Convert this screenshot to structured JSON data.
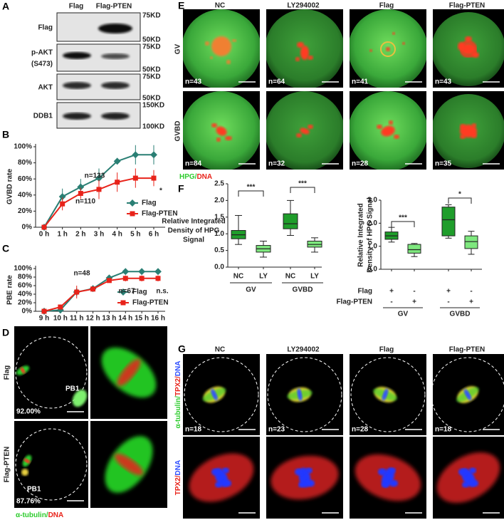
{
  "panel_a": {
    "label": "A",
    "columns": [
      "Flag",
      "Flag-PTEN"
    ],
    "rows": [
      {
        "label": [
          "Flag"
        ],
        "markers": [
          "75KD",
          "50KD"
        ]
      },
      {
        "label": [
          "p-AKT",
          "(S473)"
        ],
        "markers": [
          "75KD",
          "50KD"
        ]
      },
      {
        "label": [
          "AKT"
        ],
        "markers": [
          "75KD",
          "50KD"
        ]
      },
      {
        "label": [
          "DDB1"
        ],
        "markers": [
          "150KD",
          "100KD"
        ]
      }
    ]
  },
  "chart_data": [
    {
      "type": "line",
      "panel": "B",
      "ylabel": "GVBD rate",
      "categories": [
        "0 h",
        "1 h",
        "2 h",
        "3 h",
        "4 h",
        "5 h",
        "6 h"
      ],
      "series": [
        {
          "name": "Flag",
          "color": "#2a7f74",
          "marker": "diamond",
          "values": [
            0,
            38,
            50,
            61,
            82,
            90,
            90
          ],
          "errors": [
            0,
            10,
            10,
            12,
            4,
            12,
            12
          ]
        },
        {
          "name": "Flag-PTEN",
          "color": "#e8231a",
          "marker": "square",
          "values": [
            0,
            29,
            42,
            47,
            56,
            61,
            61
          ],
          "errors": [
            0,
            8,
            7,
            12,
            12,
            12,
            10
          ]
        }
      ],
      "ylim": [
        0,
        100
      ],
      "yticks": [
        {
          "value": 0,
          "label": "0%"
        },
        {
          "value": 20,
          "label": "20%"
        },
        {
          "value": 40,
          "label": "40%"
        },
        {
          "value": 60,
          "label": "60%"
        },
        {
          "value": 80,
          "label": "80%"
        },
        {
          "value": 100,
          "label": "100%"
        }
      ],
      "legend": "lower right",
      "annotations": [
        "n=133",
        "n=110",
        "*"
      ]
    },
    {
      "type": "line",
      "panel": "C",
      "ylabel": "PBE rate",
      "categories": [
        "9 h",
        "10 h",
        "11 h",
        "12 h",
        "13 h",
        "14 h",
        "15 h",
        "16 h"
      ],
      "series": [
        {
          "name": "Flag",
          "color": "#2a7f74",
          "marker": "diamond",
          "values": [
            0,
            3,
            45,
            53,
            78,
            93,
            93,
            93
          ],
          "errors": [
            0,
            0,
            10,
            5,
            5,
            7,
            7,
            7
          ]
        },
        {
          "name": "Flag-PTEN",
          "color": "#e8231a",
          "marker": "square",
          "values": [
            0,
            10,
            45,
            52,
            72,
            77,
            77,
            77
          ],
          "errors": [
            0,
            5,
            15,
            5,
            5,
            7,
            7,
            7
          ]
        }
      ],
      "ylim": [
        0,
        100
      ],
      "yticks": [
        {
          "value": 0,
          "label": "0%"
        },
        {
          "value": 20,
          "label": "20%"
        },
        {
          "value": 40,
          "label": "40%"
        },
        {
          "value": 60,
          "label": "60%"
        },
        {
          "value": 80,
          "label": "80%"
        },
        {
          "value": 100,
          "label": "100%"
        }
      ],
      "legend": "lower right",
      "annotations": [
        "n=48",
        "n=67",
        "n.s."
      ]
    },
    {
      "type": "box",
      "panel": "F",
      "ylabel": [
        "Relative Integrated",
        "Density of HPG",
        "Signal"
      ],
      "categories": [
        "NC",
        "LY",
        "NC",
        "LY"
      ],
      "groups": [
        "GV",
        "GVBD"
      ],
      "boxes": [
        {
          "min": 0.68,
          "q1": 0.85,
          "median": 0.97,
          "q3": 1.1,
          "max": 1.55
        },
        {
          "min": 0.3,
          "q1": 0.45,
          "median": 0.55,
          "q3": 0.65,
          "max": 0.78
        },
        {
          "min": 0.95,
          "q1": 1.15,
          "median": 1.3,
          "q3": 1.6,
          "max": 2.0
        },
        {
          "min": 0.45,
          "q1": 0.6,
          "median": 0.68,
          "q3": 0.78,
          "max": 0.88
        }
      ],
      "colors": [
        "#1f9d2b",
        "#7ee87e",
        "#1f9d2b",
        "#7ee87e"
      ],
      "ylim": [
        0,
        2.5
      ],
      "yticks": [
        {
          "value": 0,
          "label": "0.0"
        },
        0.5,
        {
          "value": 1,
          "label": "1.0"
        },
        1.5,
        {
          "value": 2,
          "label": "2.0"
        },
        2.5
      ],
      "annotations": [
        "***",
        "***"
      ]
    },
    {
      "type": "box",
      "ylabel": [
        "Relative Integrated",
        "Density of HPG Signal"
      ],
      "conditions": [
        {
          "name": "Flag",
          "signs": [
            "+",
            "-",
            "+",
            "-"
          ]
        },
        {
          "name": "Flag-PTEN",
          "signs": [
            "-",
            "+",
            "-",
            "+"
          ]
        }
      ],
      "groups": [
        "GV",
        "GVBD"
      ],
      "boxes": [
        {
          "min": 1.18,
          "q1": 1.3,
          "median": 1.45,
          "q3": 1.62,
          "max": 1.82
        },
        {
          "min": 0.55,
          "q1": 0.7,
          "median": 0.85,
          "q3": 1.08,
          "max": 1.12
        },
        {
          "min": 1.35,
          "q1": 1.45,
          "median": 2.15,
          "q3": 2.7,
          "max": 2.8
        },
        {
          "min": 0.65,
          "q1": 0.9,
          "median": 1.2,
          "q3": 1.45,
          "max": 1.65
        }
      ],
      "colors": [
        "#1f9d2b",
        "#7ee87e",
        "#1f9d2b",
        "#7ee87e"
      ],
      "ylim": [
        0,
        3
      ],
      "yticks": [
        {
          "value": 0,
          "label": "0.0"
        },
        {
          "value": 1,
          "label": "1.0"
        },
        {
          "value": 2,
          "label": "2.0"
        },
        {
          "value": 3,
          "label": "3.0"
        }
      ],
      "annotations": [
        "***",
        "*"
      ]
    }
  ],
  "panel_d": {
    "label": "D",
    "rows": [
      "Flag",
      "Flag-PTEN"
    ],
    "pb1": [
      "PB1",
      "PB1"
    ],
    "percent": [
      "92.00%",
      "87.76%"
    ],
    "stain": [
      "α-tubulin/",
      "DNA"
    ]
  },
  "panel_e": {
    "label": "E",
    "columns": [
      "NC",
      "LY294002",
      "Flag",
      "Flag-PTEN"
    ],
    "rows": [
      "GV",
      "GVBD"
    ],
    "n": [
      [
        "n=43",
        "n=64",
        "n=41",
        "n=43"
      ],
      [
        "n=84",
        "n=32",
        "n=28",
        "n=35"
      ]
    ],
    "stain": [
      "HPG/",
      "DNA"
    ]
  },
  "panel_g": {
    "label": "G",
    "columns": [
      "NC",
      "LY294002",
      "Flag",
      "Flag-PTEN"
    ],
    "rows": [
      [
        "α-tubulin/",
        "TPX2/",
        "DNA"
      ],
      [
        "TPX2/",
        "DNA"
      ]
    ],
    "n": [
      "n=18",
      "n=23",
      "n=28",
      "n=18"
    ]
  }
}
